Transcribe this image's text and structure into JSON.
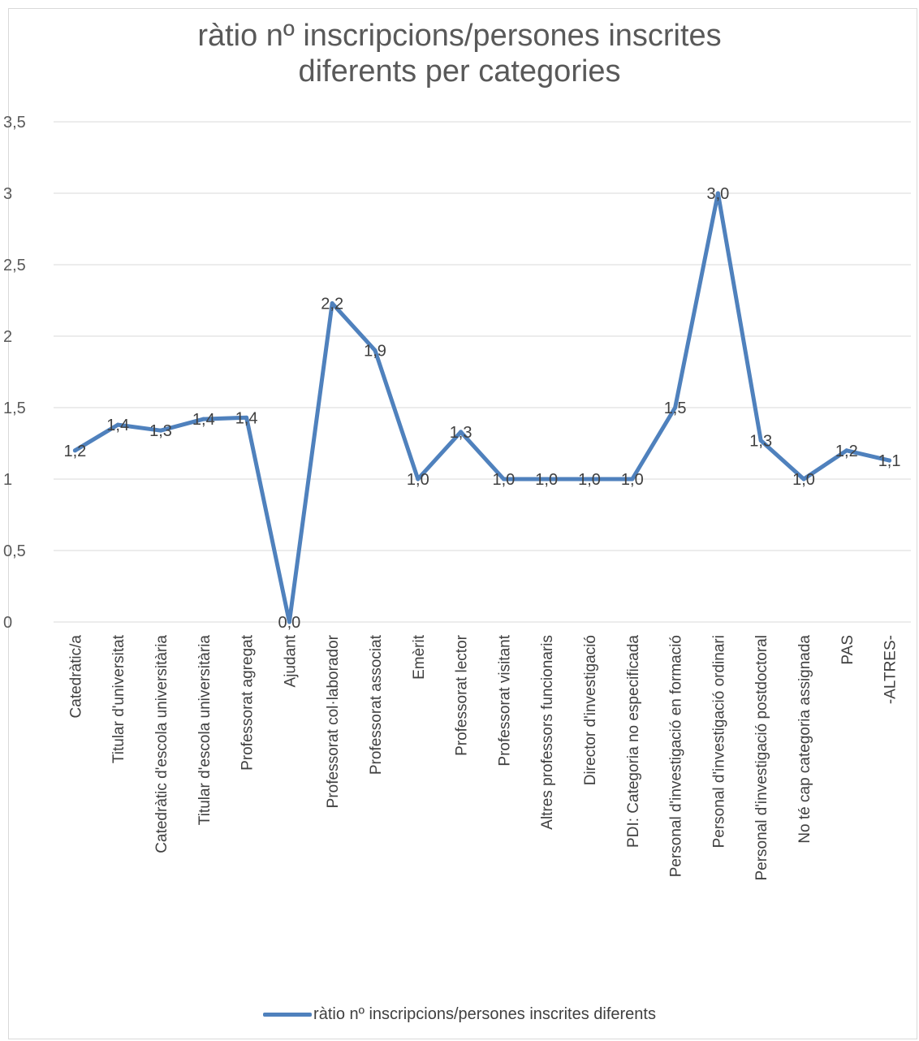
{
  "chart_data": {
    "type": "line",
    "title_lines": [
      "ràtio nº inscripcions/persones inscrites",
      "diferents per categories"
    ],
    "categories": [
      "Catedràtic/a",
      "Titular d'universitat",
      "Catedràtic d'escola universitària",
      "Titular d'escola universitària",
      "Professorat agregat",
      "Ajudant",
      "Professorat col·laborador",
      "Professorat associat",
      "Emèrit",
      "Professorat lector",
      "Professorat visitant",
      "Altres professors funcionaris",
      "Director d'investigació",
      "PDI: Categoria no especificada",
      "Personal d'investigació en formació",
      "Personal d'investigació ordinari",
      "Personal d'investigació postdoctoral",
      "No té cap categoria assignada",
      "PAS",
      "-ALTRES-"
    ],
    "series": [
      {
        "name": "ràtio nº inscripcions/persones inscrites diferents",
        "values": [
          1.2,
          1.38,
          1.34,
          1.42,
          1.43,
          0.0,
          2.23,
          1.9,
          1.0,
          1.33,
          1.0,
          1.0,
          1.0,
          1.0,
          1.5,
          3.0,
          1.27,
          1.0,
          1.2,
          1.13
        ],
        "labels": [
          "1,2",
          "1,4",
          "1,3",
          "1,4",
          "1,4",
          "0,0",
          "2,2",
          "1,9",
          "1,0",
          "1,3",
          "1,0",
          "1,0",
          "1,0",
          "1,0",
          "1,5",
          "3,0",
          "1,3",
          "1,0",
          "1,2",
          "1,1"
        ],
        "color": "#4f81bd"
      }
    ],
    "yticks": [
      "0",
      "0,5",
      "1",
      "1,5",
      "2",
      "2,5",
      "3",
      "3,5"
    ],
    "ylim": [
      0,
      3.5
    ],
    "grid": true,
    "legend_position": "bottom",
    "gridline_color": "#d9d9d9"
  }
}
